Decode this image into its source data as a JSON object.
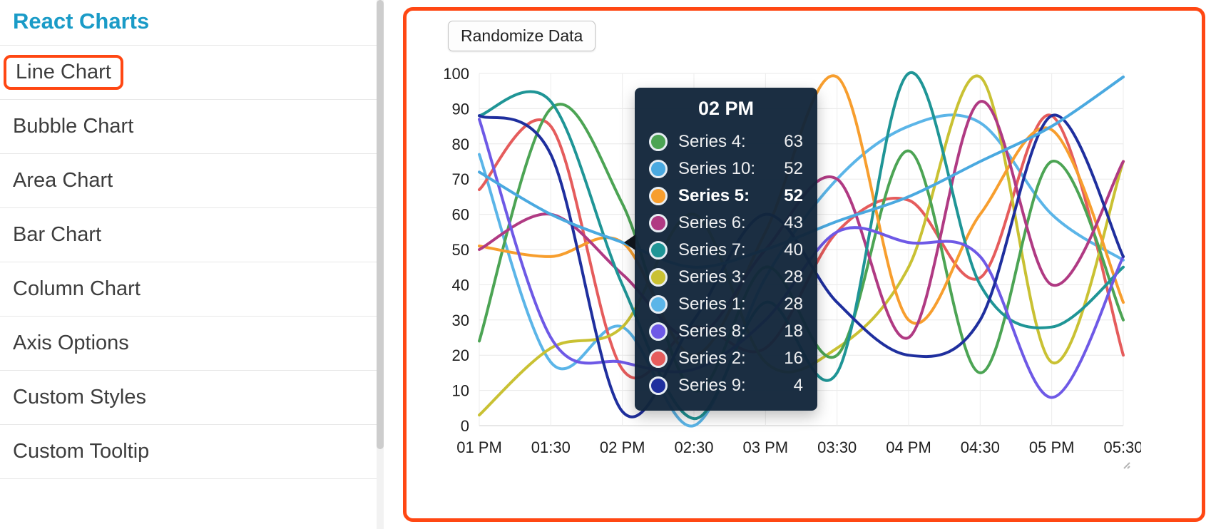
{
  "sidebar": {
    "title": "React Charts",
    "items": [
      {
        "label": "Line Chart",
        "active": true
      },
      {
        "label": "Bubble Chart",
        "active": false
      },
      {
        "label": "Area Chart",
        "active": false
      },
      {
        "label": "Bar Chart",
        "active": false
      },
      {
        "label": "Column Chart",
        "active": false
      },
      {
        "label": "Axis Options",
        "active": false
      },
      {
        "label": "Custom Styles",
        "active": false
      },
      {
        "label": "Custom Tooltip",
        "active": false
      }
    ]
  },
  "chart_panel": {
    "randomize_button_label": "Randomize Data",
    "accent_border_color": "#ff4713"
  },
  "tooltip": {
    "title": "02 PM",
    "rows": [
      {
        "series": "Series 4:",
        "value": 63,
        "color": "#4ca454",
        "highlight": false
      },
      {
        "series": "Series 10:",
        "value": 52,
        "color": "#4aa9e0",
        "highlight": false
      },
      {
        "series": "Series 5:",
        "value": 52,
        "color": "#f79e2e",
        "highlight": true
      },
      {
        "series": "Series 6:",
        "value": 43,
        "color": "#b03a83",
        "highlight": false
      },
      {
        "series": "Series 7:",
        "value": 40,
        "color": "#1f9596",
        "highlight": false
      },
      {
        "series": "Series 3:",
        "value": 28,
        "color": "#c9c133",
        "highlight": false
      },
      {
        "series": "Series 1:",
        "value": 28,
        "color": "#5bb5e8",
        "highlight": false
      },
      {
        "series": "Series 8:",
        "value": 18,
        "color": "#6e59e6",
        "highlight": false
      },
      {
        "series": "Series 2:",
        "value": 16,
        "color": "#e55c5c",
        "highlight": false
      },
      {
        "series": "Series 9:",
        "value": 4,
        "color": "#1f2f9e",
        "highlight": false
      }
    ]
  },
  "chart_data": {
    "type": "line",
    "title": "",
    "xlabel": "",
    "ylabel": "",
    "x": [
      "01 PM",
      "01:30",
      "02 PM",
      "02:30",
      "03 PM",
      "03:30",
      "04 PM",
      "04:30",
      "05 PM",
      "05:30"
    ],
    "ylim": [
      0,
      100
    ],
    "yticks": [
      0,
      10,
      20,
      30,
      40,
      50,
      60,
      70,
      80,
      90,
      100
    ],
    "grid": true,
    "legend": "none",
    "hovered_x": "02 PM",
    "series": [
      {
        "name": "Series 1",
        "color": "#5bb5e8",
        "values": [
          77,
          18,
          28,
          0,
          42,
          70,
          85,
          86,
          60,
          47
        ]
      },
      {
        "name": "Series 2",
        "color": "#e55c5c",
        "values": [
          67,
          85,
          16,
          28,
          22,
          55,
          64,
          42,
          88,
          20
        ]
      },
      {
        "name": "Series 3",
        "color": "#c9c133",
        "values": [
          3,
          22,
          28,
          60,
          18,
          22,
          45,
          99,
          18,
          75
        ]
      },
      {
        "name": "Series 4",
        "color": "#4ca454",
        "values": [
          24,
          90,
          63,
          10,
          45,
          20,
          78,
          15,
          75,
          30
        ]
      },
      {
        "name": "Series 5",
        "color": "#f79e2e",
        "values": [
          51,
          48,
          52,
          20,
          55,
          99,
          30,
          60,
          84,
          35
        ]
      },
      {
        "name": "Series 6",
        "color": "#b03a83",
        "values": [
          50,
          60,
          43,
          25,
          50,
          70,
          25,
          92,
          40,
          75
        ]
      },
      {
        "name": "Series 7",
        "color": "#1f9596",
        "values": [
          88,
          92,
          40,
          2,
          35,
          15,
          100,
          40,
          28,
          45
        ]
      },
      {
        "name": "Series 8",
        "color": "#6e59e6",
        "values": [
          87,
          25,
          18,
          16,
          30,
          55,
          52,
          48,
          8,
          48
        ]
      },
      {
        "name": "Series 9",
        "color": "#1f2f9e",
        "values": [
          88,
          77,
          4,
          30,
          60,
          35,
          20,
          30,
          88,
          48
        ]
      },
      {
        "name": "Series 10",
        "color": "#4aa9e0",
        "values": [
          72,
          60,
          52,
          45,
          50,
          58,
          65,
          75,
          85,
          99
        ]
      }
    ]
  }
}
